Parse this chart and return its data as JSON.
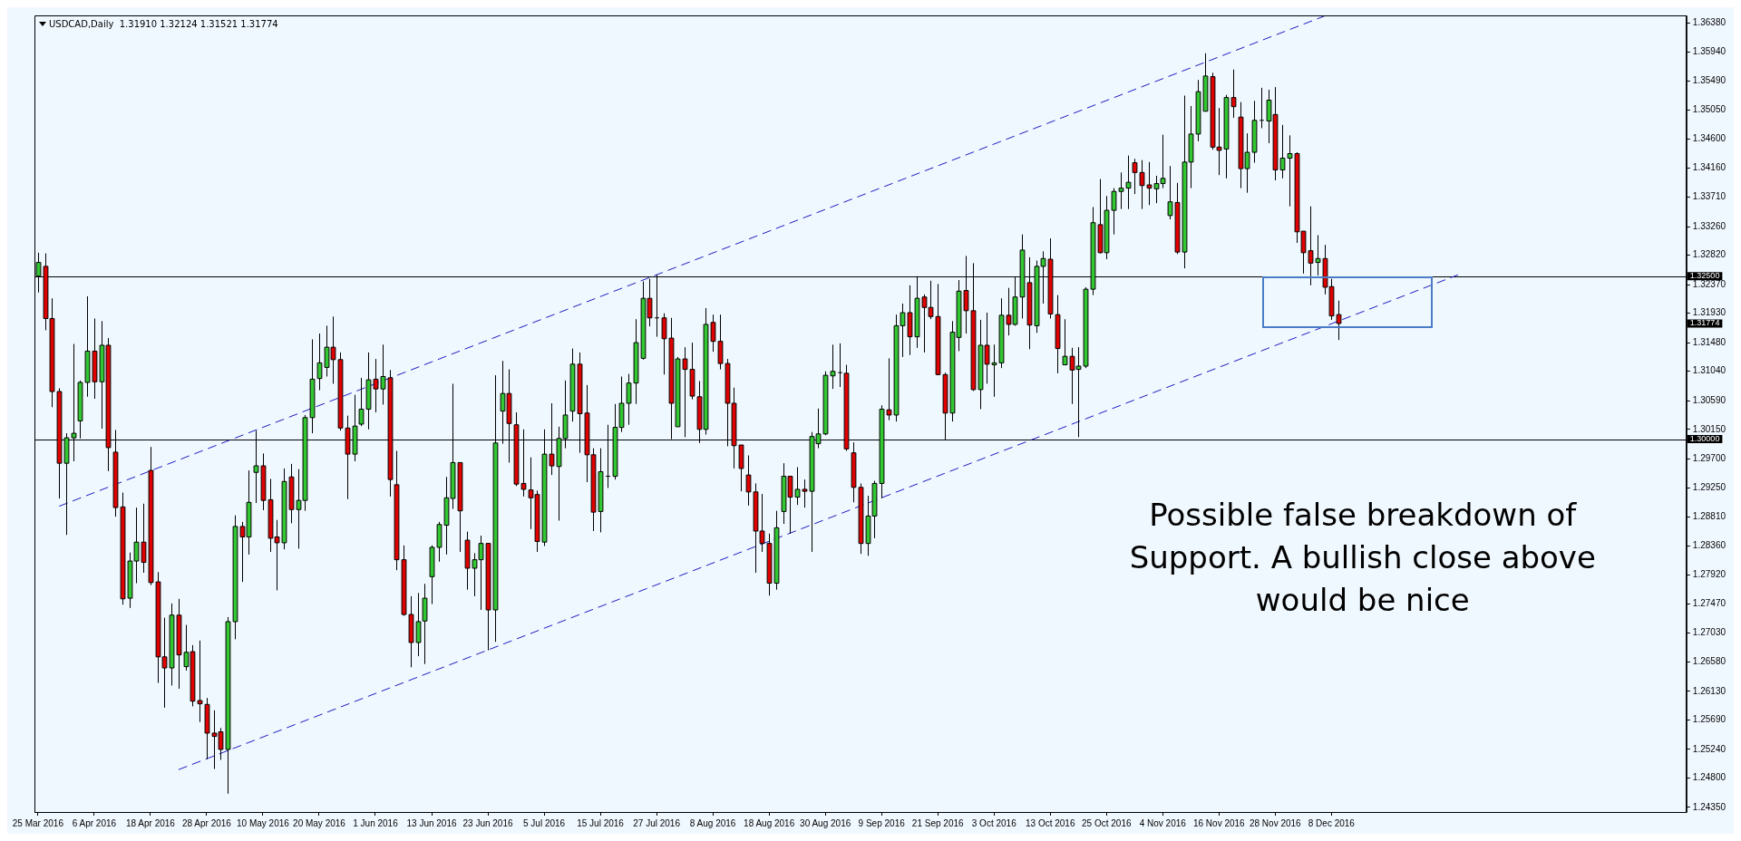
{
  "chart_data": {
    "type": "candlestick",
    "title": "USDCAD,Daily  1.31910 1.32124 1.31521 1.31774",
    "categories": [
      "25 Mar 2016",
      null,
      null,
      null,
      null,
      null,
      null,
      null,
      "6 Apr 2016",
      null,
      null,
      null,
      null,
      null,
      null,
      null,
      "18 Apr 2016",
      null,
      null,
      null,
      null,
      null,
      null,
      null,
      "28 Apr 2016",
      null,
      null,
      null,
      null,
      null,
      null,
      null,
      "10 May 2016",
      null,
      null,
      null,
      null,
      null,
      null,
      null,
      "20 May 2016",
      null,
      null,
      null,
      null,
      null,
      null,
      null,
      "1 Jun 2016",
      null,
      null,
      null,
      null,
      null,
      null,
      null,
      "13 Jun 2016",
      null,
      null,
      null,
      null,
      null,
      null,
      null,
      "23 Jun 2016",
      null,
      null,
      null,
      null,
      null,
      null,
      null,
      "5 Jul 2016",
      null,
      null,
      null,
      null,
      null,
      null,
      null,
      "15 Jul 2016",
      null,
      null,
      null,
      null,
      null,
      null,
      null,
      "27 Jul 2016",
      null,
      null,
      null,
      null,
      null,
      null,
      null,
      "8 Aug 2016",
      null,
      null,
      null,
      null,
      null,
      null,
      null,
      "18 Aug 2016",
      null,
      null,
      null,
      null,
      null,
      null,
      null,
      "30 Aug 2016",
      null,
      null,
      null,
      null,
      null,
      null,
      null,
      "9 Sep 2016",
      null,
      null,
      null,
      null,
      null,
      null,
      null,
      "21 Sep 2016",
      null,
      null,
      null,
      null,
      null,
      null,
      null,
      "3 Oct 2016",
      null,
      null,
      null,
      null,
      null,
      null,
      null,
      "13 Oct 2016",
      null,
      null,
      null,
      null,
      null,
      null,
      null,
      "25 Oct 2016",
      null,
      null,
      null,
      null,
      null,
      null,
      null,
      "4 Nov 2016",
      null,
      null,
      null,
      null,
      null,
      null,
      null,
      "16 Nov 2016",
      null,
      null,
      null,
      null,
      null,
      null,
      null,
      "28 Nov 2016",
      null,
      null,
      null,
      null,
      null,
      null,
      null,
      "8 Dec 2016",
      null,
      null,
      null,
      null,
      null,
      null,
      null,
      null,
      null,
      null,
      null,
      null,
      null,
      null,
      null,
      null,
      null,
      null,
      null,
      null,
      null,
      null,
      null,
      null,
      null,
      null,
      null,
      null,
      null,
      null,
      null,
      null,
      null,
      null,
      null,
      null,
      null,
      null,
      null,
      null,
      null,
      null,
      null,
      null,
      null,
      null,
      null,
      null,
      null,
      null
    ],
    "ohlc": [
      [
        1.325,
        1.3286,
        1.3225,
        1.3271
      ],
      [
        1.3265,
        1.3285,
        1.3167,
        1.3185
      ],
      [
        1.3185,
        1.3216,
        1.3049,
        1.3073
      ],
      [
        1.3073,
        1.3078,
        1.2909,
        1.2963
      ],
      [
        1.2963,
        1.3009,
        1.2853,
        1.3002
      ],
      [
        1.3002,
        1.3146,
        1.2966,
        1.3009
      ],
      [
        1.3028,
        1.309,
        1.3001,
        1.3087
      ],
      [
        1.3087,
        1.3219,
        1.3065,
        1.3135
      ],
      [
        1.3135,
        1.3185,
        1.3062,
        1.3088
      ],
      [
        1.3088,
        1.3181,
        1.3016,
        1.3144
      ],
      [
        1.3144,
        1.3155,
        1.2951,
        1.2987
      ],
      [
        1.298,
        1.3014,
        1.2881,
        1.2895
      ],
      [
        1.2896,
        1.2918,
        1.2746,
        1.2755
      ],
      [
        1.2756,
        1.2826,
        1.2741,
        1.2813
      ],
      [
        1.2813,
        1.2895,
        1.2779,
        1.2842
      ],
      [
        1.2842,
        1.2901,
        1.2795,
        1.2811
      ],
      [
        1.2952,
        1.2988,
        1.2776,
        1.278
      ],
      [
        1.2781,
        1.2796,
        1.2626,
        1.2666
      ],
      [
        1.2666,
        1.2726,
        1.2588,
        1.2649
      ],
      [
        1.2649,
        1.2748,
        1.2622,
        1.273
      ],
      [
        1.273,
        1.2755,
        1.2617,
        1.2669
      ],
      [
        1.2651,
        1.2715,
        1.2645,
        1.2673
      ],
      [
        1.2674,
        1.2684,
        1.259,
        1.2598
      ],
      [
        1.2599,
        1.2691,
        1.2566,
        1.2594
      ],
      [
        1.2593,
        1.2603,
        1.2509,
        1.2549
      ],
      [
        1.2549,
        1.2584,
        1.2494,
        1.2544
      ],
      [
        1.2551,
        1.2557,
        1.2508,
        1.2524
      ],
      [
        1.2524,
        1.2727,
        1.2456,
        1.272
      ],
      [
        1.272,
        1.2883,
        1.2693,
        1.2866
      ],
      [
        1.2866,
        1.2873,
        1.2781,
        1.285
      ],
      [
        1.285,
        1.2952,
        1.2823,
        1.2903
      ],
      [
        1.2949,
        1.3013,
        1.2902,
        1.2959
      ],
      [
        1.2959,
        1.2978,
        1.2891,
        1.2906
      ],
      [
        1.2907,
        1.2939,
        1.2827,
        1.2848
      ],
      [
        1.285,
        1.2876,
        1.2768,
        1.2841
      ],
      [
        1.2841,
        1.2955,
        1.2831,
        1.2935
      ],
      [
        1.2942,
        1.2962,
        1.2871,
        1.2892
      ],
      [
        1.2892,
        1.2954,
        1.2832,
        1.2906
      ],
      [
        1.2906,
        1.3037,
        1.289,
        1.3033
      ],
      [
        1.3033,
        1.3153,
        1.3009,
        1.3092
      ],
      [
        1.3093,
        1.3162,
        1.3075,
        1.3117
      ],
      [
        1.311,
        1.3174,
        1.3096,
        1.3141
      ],
      [
        1.3141,
        1.3188,
        1.3085,
        1.3122
      ],
      [
        1.3122,
        1.3133,
        1.3013,
        1.3017
      ],
      [
        1.3017,
        1.3036,
        1.2908,
        1.2977
      ],
      [
        1.2977,
        1.3068,
        1.2966,
        1.302
      ],
      [
        1.3023,
        1.3094,
        1.302,
        1.3046
      ],
      [
        1.3046,
        1.3133,
        1.3015,
        1.3091
      ],
      [
        1.3092,
        1.3123,
        1.3041,
        1.3077
      ],
      [
        1.3077,
        1.3145,
        1.3053,
        1.3096
      ],
      [
        1.3094,
        1.3106,
        1.2912,
        1.2938
      ],
      [
        1.293,
        1.2982,
        1.2799,
        1.2815
      ],
      [
        1.2815,
        1.2837,
        1.2729,
        1.2731
      ],
      [
        1.2731,
        1.2759,
        1.265,
        1.2688
      ],
      [
        1.2688,
        1.2764,
        1.2667,
        1.272
      ],
      [
        1.2721,
        1.2778,
        1.2655,
        1.2756
      ],
      [
        1.2789,
        1.2837,
        1.2747,
        1.2834
      ],
      [
        1.2834,
        1.2873,
        1.2812,
        1.2869
      ],
      [
        1.2868,
        1.2942,
        1.2823,
        1.291
      ],
      [
        1.2909,
        1.3085,
        1.2893,
        1.2964
      ],
      [
        1.2964,
        1.2964,
        1.2827,
        1.289
      ],
      [
        1.2845,
        1.2858,
        1.2769,
        1.2802
      ],
      [
        1.2802,
        1.2825,
        1.2759,
        1.2815
      ],
      [
        1.2815,
        1.2852,
        1.2738,
        1.284
      ],
      [
        1.284,
        1.284,
        1.2676,
        1.2738
      ],
      [
        1.2738,
        1.3098,
        1.2689,
        1.2994
      ],
      [
        1.3043,
        1.312,
        1.2993,
        1.307
      ],
      [
        1.307,
        1.3107,
        1.2964,
        1.3024
      ],
      [
        1.3022,
        1.3041,
        1.2928,
        1.2931
      ],
      [
        1.2932,
        1.3015,
        1.2912,
        1.2923
      ],
      [
        1.2922,
        1.2972,
        1.2862,
        1.291
      ],
      [
        1.2915,
        1.2921,
        1.2827,
        1.2843
      ],
      [
        1.2842,
        1.3015,
        1.2836,
        1.2977
      ],
      [
        1.2977,
        1.3055,
        1.2945,
        1.2959
      ],
      [
        1.2958,
        1.3019,
        1.2875,
        1.3001
      ],
      [
        1.3001,
        1.309,
        1.2986,
        1.3037
      ],
      [
        1.3043,
        1.3139,
        1.3027,
        1.3115
      ],
      [
        1.3115,
        1.3133,
        1.2979,
        1.3039
      ],
      [
        1.304,
        1.3083,
        1.2934,
        1.2976
      ],
      [
        1.2976,
        1.2986,
        1.2859,
        1.2888
      ],
      [
        1.2889,
        1.2986,
        1.2857,
        1.295
      ],
      [
        1.2943,
        1.3022,
        1.2925,
        1.2943
      ],
      [
        1.2943,
        1.3054,
        1.2938,
        1.3018
      ],
      [
        1.3018,
        1.3096,
        1.3011,
        1.3055
      ],
      [
        1.3055,
        1.31,
        1.3022,
        1.3086
      ],
      [
        1.3086,
        1.3184,
        1.3054,
        1.3148
      ],
      [
        1.3124,
        1.3242,
        1.3122,
        1.3216
      ],
      [
        1.3216,
        1.3246,
        1.3173,
        1.3186
      ],
      [
        1.3186,
        1.3252,
        1.3157,
        1.3186
      ],
      [
        1.3186,
        1.3193,
        1.3099,
        1.3154
      ],
      [
        1.3155,
        1.3186,
        1.3,
        1.3055
      ],
      [
        1.3019,
        1.3126,
        1.3019,
        1.3123
      ],
      [
        1.3123,
        1.3141,
        1.3003,
        1.3107
      ],
      [
        1.3107,
        1.3148,
        1.3061,
        1.3066
      ],
      [
        1.3065,
        1.3089,
        1.2994,
        1.3015
      ],
      [
        1.3015,
        1.3201,
        1.3007,
        1.3176
      ],
      [
        1.3179,
        1.3191,
        1.3134,
        1.315
      ],
      [
        1.315,
        1.3191,
        1.3107,
        1.3116
      ],
      [
        1.3116,
        1.3123,
        1.2989,
        1.3055
      ],
      [
        1.3055,
        1.3079,
        1.2955,
        1.299
      ],
      [
        1.2991,
        1.2991,
        1.292,
        1.2955
      ],
      [
        1.2945,
        1.2975,
        1.2898,
        1.2919
      ],
      [
        1.2919,
        1.2932,
        1.2795,
        1.2859
      ],
      [
        1.2859,
        1.2916,
        1.2827,
        1.284
      ],
      [
        1.284,
        1.2855,
        1.276,
        1.2779
      ],
      [
        1.2779,
        1.289,
        1.2769,
        1.2864
      ],
      [
        1.2889,
        1.2963,
        1.287,
        1.2943
      ],
      [
        1.2943,
        1.2943,
        1.2855,
        1.2911
      ],
      [
        1.2911,
        1.2957,
        1.2899,
        1.2923
      ],
      [
        1.2923,
        1.2938,
        1.2895,
        1.292
      ],
      [
        1.292,
        1.3011,
        1.2827,
        1.3004
      ],
      [
        1.2993,
        1.3047,
        1.2986,
        1.3008
      ],
      [
        1.3008,
        1.3104,
        1.3006,
        1.3098
      ],
      [
        1.3097,
        1.3145,
        1.3077,
        1.3104
      ],
      [
        1.3102,
        1.3147,
        1.308,
        1.3102
      ],
      [
        1.3101,
        1.3114,
        1.2982,
        1.2985
      ],
      [
        1.2979,
        1.2995,
        1.2903,
        1.2926
      ],
      [
        1.2926,
        1.2932,
        1.2824,
        1.284
      ],
      [
        1.284,
        1.2913,
        1.2821,
        1.2882
      ],
      [
        1.2882,
        1.2936,
        1.2848,
        1.2932
      ],
      [
        1.2932,
        1.3052,
        1.2909,
        1.3046
      ],
      [
        1.3045,
        1.3124,
        1.3029,
        1.3037
      ],
      [
        1.3037,
        1.3191,
        1.3027,
        1.3174
      ],
      [
        1.3174,
        1.3208,
        1.3126,
        1.3194
      ],
      [
        1.3194,
        1.3236,
        1.3129,
        1.3157
      ],
      [
        1.3157,
        1.325,
        1.314,
        1.3216
      ],
      [
        1.3218,
        1.3222,
        1.3133,
        1.3202
      ],
      [
        1.3202,
        1.3243,
        1.3184,
        1.3188
      ],
      [
        1.3188,
        1.3238,
        1.3098,
        1.3099
      ],
      [
        1.3099,
        1.3102,
        1.2998,
        1.304
      ],
      [
        1.304,
        1.3181,
        1.3027,
        1.3164
      ],
      [
        1.3156,
        1.3244,
        1.3135,
        1.3227
      ],
      [
        1.3228,
        1.3281,
        1.3162,
        1.3197
      ],
      [
        1.3197,
        1.327,
        1.3074,
        1.3076
      ],
      [
        1.3076,
        1.3183,
        1.3046,
        1.3144
      ],
      [
        1.3144,
        1.3194,
        1.3085,
        1.3115
      ],
      [
        1.3114,
        1.3145,
        1.3065,
        1.3117
      ],
      [
        1.3117,
        1.3216,
        1.3109,
        1.319
      ],
      [
        1.319,
        1.3232,
        1.3159,
        1.3176
      ],
      [
        1.3176,
        1.3249,
        1.3174,
        1.3218
      ],
      [
        1.3218,
        1.3314,
        1.3185,
        1.329
      ],
      [
        1.324,
        1.3279,
        1.3138,
        1.3175
      ],
      [
        1.3174,
        1.3274,
        1.3163,
        1.3265
      ],
      [
        1.3265,
        1.3288,
        1.3208,
        1.3277
      ],
      [
        1.3276,
        1.3308,
        1.3185,
        1.3192
      ],
      [
        1.3191,
        1.3221,
        1.3101,
        1.3139
      ],
      [
        1.3114,
        1.3184,
        1.3114,
        1.3127
      ],
      [
        1.3127,
        1.314,
        1.3054,
        1.3106
      ],
      [
        1.3107,
        1.3141,
        1.3003,
        1.3112
      ],
      [
        1.3112,
        1.3233,
        1.3109,
        1.323
      ],
      [
        1.323,
        1.3356,
        1.3221,
        1.3332
      ],
      [
        1.3329,
        1.3399,
        1.3285,
        1.3286
      ],
      [
        1.3286,
        1.3373,
        1.3276,
        1.3351
      ],
      [
        1.3351,
        1.3385,
        1.3314,
        1.338
      ],
      [
        1.338,
        1.3409,
        1.3353,
        1.3385
      ],
      [
        1.3385,
        1.3435,
        1.3353,
        1.3394
      ],
      [
        1.3424,
        1.343,
        1.3376,
        1.3409
      ],
      [
        1.3409,
        1.3428,
        1.3353,
        1.3389
      ],
      [
        1.339,
        1.3425,
        1.3359,
        1.3385
      ],
      [
        1.3384,
        1.3404,
        1.3362,
        1.3392
      ],
      [
        1.3392,
        1.3467,
        1.3385,
        1.34
      ],
      [
        1.3343,
        1.3419,
        1.3337,
        1.3364
      ],
      [
        1.3363,
        1.3393,
        1.3284,
        1.3287
      ],
      [
        1.3287,
        1.3527,
        1.3262,
        1.3425
      ],
      [
        1.3425,
        1.3511,
        1.3385,
        1.3468
      ],
      [
        1.3468,
        1.3551,
        1.3457,
        1.3533
      ],
      [
        1.3503,
        1.3592,
        1.3503,
        1.3557
      ],
      [
        1.3556,
        1.3562,
        1.3444,
        1.3448
      ],
      [
        1.3448,
        1.3508,
        1.3405,
        1.3443
      ],
      [
        1.3445,
        1.3528,
        1.34,
        1.3524
      ],
      [
        1.3524,
        1.3567,
        1.3493,
        1.351
      ],
      [
        1.3494,
        1.3517,
        1.3385,
        1.3415
      ],
      [
        1.3415,
        1.3469,
        1.3378,
        1.344
      ],
      [
        1.344,
        1.3519,
        1.3424,
        1.3489
      ],
      [
        1.3489,
        1.3539,
        1.3477,
        1.3489
      ],
      [
        1.3488,
        1.3536,
        1.3454,
        1.352
      ],
      [
        1.3498,
        1.354,
        1.3397,
        1.3413
      ],
      [
        1.3413,
        1.3482,
        1.34,
        1.3431
      ],
      [
        1.3431,
        1.3466,
        1.3357,
        1.3438
      ],
      [
        1.3438,
        1.344,
        1.3301,
        1.3318
      ],
      [
        1.3319,
        1.3319,
        1.3254,
        1.3286
      ],
      [
        1.3289,
        1.3357,
        1.3236,
        1.327
      ],
      [
        1.3271,
        1.3313,
        1.3251,
        1.3277
      ],
      [
        1.3277,
        1.3298,
        1.3222,
        1.3233
      ],
      [
        1.3234,
        1.3246,
        1.3183,
        1.3189
      ],
      [
        1.3191,
        1.32124,
        1.31521,
        1.31774
      ],
      null,
      null,
      null,
      null,
      null,
      null,
      null,
      null,
      null,
      null,
      null,
      null,
      null,
      null,
      null,
      null,
      null,
      null,
      null,
      null,
      null,
      null,
      null,
      null,
      null,
      null,
      null,
      null,
      null,
      null,
      null,
      null,
      null,
      null,
      null,
      null,
      null,
      null,
      null,
      null,
      null,
      null,
      null,
      null,
      null,
      null,
      null,
      null,
      null
    ],
    "series": [
      {
        "type": "line",
        "color": "#1c1cc0",
        "line_style": "dashed",
        "values": [
          null,
          null,
          null,
          1.2897,
          null,
          null,
          null,
          null,
          null,
          null,
          null,
          null,
          null,
          null,
          null,
          null,
          null,
          null,
          null,
          null,
          null,
          null,
          null,
          null,
          null,
          null,
          null,
          null,
          null,
          null,
          null,
          null,
          null,
          null,
          null,
          null,
          null,
          null,
          null,
          null,
          null,
          null,
          null,
          null,
          null,
          null,
          null,
          null,
          null,
          null,
          null,
          null,
          null,
          null,
          null,
          null,
          null,
          null,
          null,
          null,
          null,
          null,
          null,
          null,
          null,
          null,
          null,
          null,
          null,
          null,
          null,
          null,
          null,
          null,
          null,
          null,
          null,
          null,
          null,
          null,
          null,
          null,
          null,
          null,
          null,
          null,
          null,
          null,
          null,
          null,
          null,
          null,
          null,
          null,
          null,
          null,
          null,
          null,
          null,
          null,
          null,
          null,
          null,
          null,
          null,
          null,
          null,
          null,
          null,
          null,
          null,
          null,
          null,
          null,
          null,
          null,
          null,
          null,
          null,
          null,
          null,
          null,
          null,
          null,
          null,
          null,
          null,
          null,
          null,
          null,
          null,
          null,
          null,
          null,
          null,
          null,
          null,
          null,
          null,
          null,
          null,
          null,
          null,
          null,
          null,
          null,
          null,
          null,
          null,
          null,
          null,
          null,
          null,
          null,
          null,
          null,
          null,
          null,
          null,
          null,
          null,
          null,
          null,
          null,
          null,
          null,
          null,
          null,
          null,
          null,
          null,
          null,
          null,
          null,
          null,
          null,
          null,
          null,
          null,
          null,
          null,
          null,
          null,
          1.3649,
          null,
          null,
          null,
          null,
          null,
          null,
          null,
          null,
          null,
          null,
          null,
          null,
          null,
          null,
          null,
          null,
          null,
          null,
          null,
          null,
          null,
          null,
          null,
          null,
          null,
          null,
          null,
          null,
          null,
          null,
          null,
          null,
          null,
          null,
          null,
          null,
          null,
          null,
          null,
          null,
          null,
          null,
          null,
          null,
          null,
          null,
          null,
          null,
          null,
          null,
          null
        ]
      },
      {
        "type": "line",
        "color": "#1c1cc0",
        "line_style": "dashed",
        "values": [
          null,
          null,
          null,
          null,
          null,
          null,
          null,
          null,
          null,
          null,
          null,
          null,
          null,
          null,
          null,
          null,
          null,
          null,
          null,
          null,
          1.2493,
          null,
          null,
          null,
          null,
          null,
          null,
          null,
          null,
          null,
          null,
          null,
          null,
          null,
          null,
          null,
          null,
          null,
          null,
          null,
          null,
          null,
          null,
          null,
          null,
          null,
          null,
          null,
          null,
          null,
          null,
          null,
          null,
          null,
          null,
          null,
          null,
          null,
          null,
          null,
          null,
          null,
          null,
          null,
          null,
          null,
          null,
          null,
          null,
          null,
          null,
          null,
          null,
          null,
          null,
          null,
          null,
          null,
          null,
          null,
          null,
          null,
          null,
          null,
          null,
          null,
          null,
          null,
          null,
          null,
          null,
          null,
          null,
          null,
          null,
          null,
          null,
          null,
          null,
          null,
          null,
          null,
          null,
          null,
          null,
          null,
          null,
          null,
          null,
          null,
          null,
          null,
          null,
          null,
          null,
          null,
          null,
          null,
          null,
          null,
          null,
          null,
          null,
          null,
          null,
          null,
          null,
          null,
          null,
          null,
          null,
          null,
          null,
          null,
          null,
          null,
          null,
          null,
          null,
          null,
          null,
          null,
          null,
          null,
          null,
          null,
          null,
          null,
          null,
          null,
          null,
          null,
          null,
          null,
          null,
          null,
          null,
          null,
          null,
          null,
          null,
          null,
          null,
          null,
          null,
          null,
          null,
          null,
          null,
          null,
          null,
          null,
          null,
          null,
          null,
          null,
          null,
          null,
          null,
          null,
          null,
          null,
          null,
          null,
          null,
          null,
          null,
          null,
          null,
          null,
          null,
          null,
          null,
          null,
          null,
          null,
          null,
          null,
          null,
          null,
          null,
          null,
          1.3252,
          null,
          null,
          null,
          null,
          null,
          null,
          null,
          null,
          null,
          null,
          null,
          null,
          null,
          null,
          null,
          null,
          null,
          null,
          null,
          null,
          null,
          null,
          null,
          null,
          null,
          null,
          null,
          null,
          null,
          null,
          null,
          null
        ]
      }
    ],
    "ylim": [
      1.2428,
      1.365
    ],
    "yticks": [
      {
        "value": 1.3638,
        "label": "1.36380"
      },
      {
        "value": 1.3594,
        "label": "1.35940"
      },
      {
        "value": 1.3549,
        "label": "1.35490"
      },
      {
        "value": 1.3505,
        "label": "1.35050"
      },
      {
        "value": 1.346,
        "label": "1.34600"
      },
      {
        "value": 1.3416,
        "label": "1.34160"
      },
      {
        "value": 1.3371,
        "label": "1.33710"
      },
      {
        "value": 1.3326,
        "label": "1.33260"
      },
      {
        "value": 1.3282,
        "label": "1.32820"
      },
      {
        "value": 1.3237,
        "label": "1.32370"
      },
      {
        "value": 1.3193,
        "label": "1.31930"
      },
      {
        "value": 1.3148,
        "label": "1.31480"
      },
      {
        "value": 1.3104,
        "label": "1.31040"
      },
      {
        "value": 1.3059,
        "label": "1.30590"
      },
      {
        "value": 1.3015,
        "label": "1.30150"
      },
      {
        "value": 1.297,
        "label": "1.29700"
      },
      {
        "value": 1.2925,
        "label": "1.29250"
      },
      {
        "value": 1.2881,
        "label": "1.28810"
      },
      {
        "value": 1.2836,
        "label": "1.28360"
      },
      {
        "value": 1.2792,
        "label": "1.27920"
      },
      {
        "value": 1.2747,
        "label": "1.27470"
      },
      {
        "value": 1.2703,
        "label": "1.27030"
      },
      {
        "value": 1.2658,
        "label": "1.26580"
      },
      {
        "value": 1.2613,
        "label": "1.26130"
      },
      {
        "value": 1.2569,
        "label": "1.25690"
      },
      {
        "value": 1.2524,
        "label": "1.25240"
      },
      {
        "value": 1.248,
        "label": "1.24800"
      },
      {
        "value": 1.2435,
        "label": "1.24350"
      }
    ],
    "ref_lines": [
      {
        "axis": "y",
        "value": 1.325,
        "label": "1.32500",
        "color": "#000000"
      },
      {
        "axis": "y",
        "value": 1.3,
        "label": "1.30000",
        "color": "#000000"
      }
    ],
    "annotations": [
      "Possible false breakdown of Support. A bullish close above would be nice",
      "1.31774"
    ]
  }
}
